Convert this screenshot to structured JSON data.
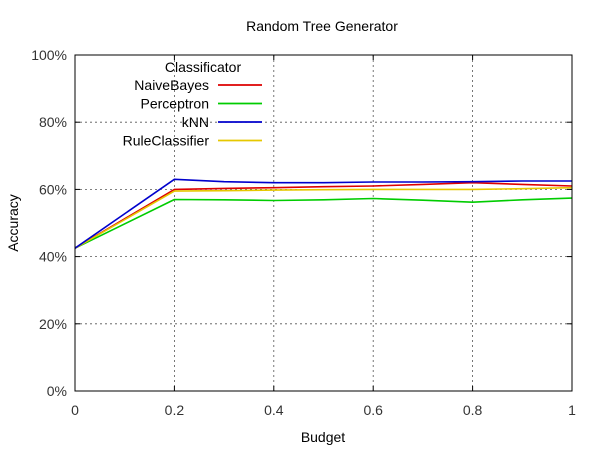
{
  "chart_data": {
    "type": "line",
    "title": "Random Tree Generator",
    "xlabel": "Budget",
    "ylabel": "Accuracy",
    "xlim": [
      0,
      1
    ],
    "ylim": [
      0,
      100
    ],
    "x_ticks": [
      0,
      0.2,
      0.4,
      0.6,
      0.8,
      1
    ],
    "x_tick_labels": [
      "0",
      "0.2",
      "0.4",
      "0.6",
      "0.8",
      "1"
    ],
    "y_ticks": [
      0,
      20,
      40,
      60,
      80,
      100
    ],
    "y_tick_labels": [
      "0%",
      "20%",
      "40%",
      "60%",
      "80%",
      "100%"
    ],
    "grid": true,
    "legend": {
      "title": "Classificator",
      "placement": "top-left"
    },
    "x": [
      0,
      0.2,
      0.3,
      0.4,
      0.5,
      0.6,
      0.7,
      0.8,
      0.9,
      1.0
    ],
    "series": [
      {
        "name": "NaiveBayes",
        "color": "#dd0000",
        "values": [
          42.5,
          60.0,
          60.3,
          60.5,
          60.8,
          61.0,
          61.5,
          62.0,
          61.5,
          61.0
        ]
      },
      {
        "name": "Perceptron",
        "color": "#00cc00",
        "values": [
          42.5,
          57.0,
          56.9,
          56.7,
          56.9,
          57.3,
          56.8,
          56.2,
          56.9,
          57.4
        ]
      },
      {
        "name": "kNN",
        "color": "#0000cc",
        "values": [
          42.5,
          63.0,
          62.3,
          62.0,
          62.0,
          62.2,
          62.2,
          62.3,
          62.5,
          62.5
        ]
      },
      {
        "name": "RuleClassifier",
        "color": "#e6c800",
        "values": [
          42.5,
          59.5,
          59.6,
          59.8,
          59.9,
          60.0,
          60.0,
          60.0,
          60.2,
          60.5
        ]
      }
    ]
  }
}
